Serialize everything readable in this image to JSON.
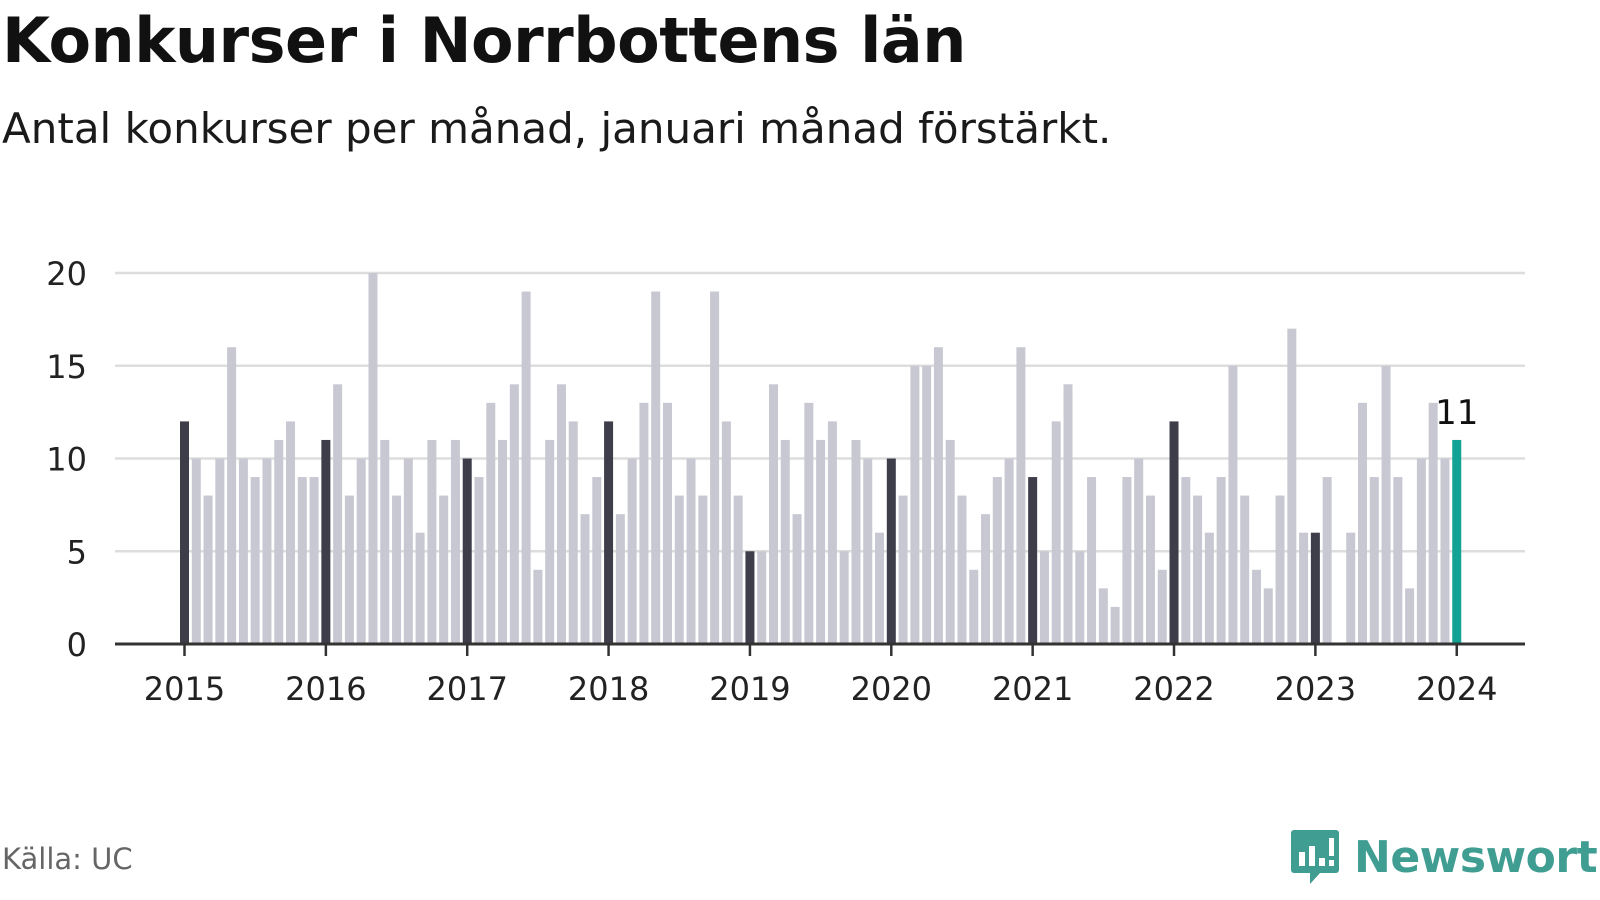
{
  "title": "Konkurser i Norrbottens län",
  "subtitle": "Antal konkurser per månad, januari månad förstärkt.",
  "source": "Källa: UC",
  "brand": "Newsworthy",
  "colors": {
    "january": "#3e3e4a",
    "other": "#c8c8d2",
    "latest": "#12a394",
    "grid": "#dddddd",
    "axis": "#333333",
    "brand": "#3f9d91"
  },
  "chart_data": {
    "type": "bar",
    "title": "Konkurser i Norrbottens län",
    "subtitle": "Antal konkurser per månad, januari månad förstärkt.",
    "xlabel": "",
    "ylabel": "",
    "ylim": [
      0,
      20
    ],
    "yticks": [
      0,
      5,
      10,
      15,
      20
    ],
    "grid": true,
    "start_year": 2015,
    "xticks": [
      "2015",
      "2016",
      "2017",
      "2018",
      "2019",
      "2020",
      "2021",
      "2022",
      "2023",
      "2024"
    ],
    "values": [
      12,
      10,
      8,
      10,
      16,
      10,
      9,
      10,
      11,
      12,
      9,
      9,
      11,
      14,
      8,
      10,
      20,
      11,
      8,
      10,
      6,
      11,
      8,
      11,
      10,
      9,
      13,
      11,
      14,
      19,
      4,
      11,
      14,
      12,
      7,
      9,
      12,
      7,
      10,
      13,
      19,
      13,
      8,
      10,
      8,
      19,
      12,
      8,
      5,
      5,
      14,
      11,
      7,
      13,
      11,
      12,
      5,
      11,
      10,
      6,
      10,
      8,
      15,
      15,
      16,
      11,
      8,
      4,
      7,
      9,
      10,
      16,
      9,
      5,
      12,
      14,
      5,
      9,
      3,
      2,
      9,
      10,
      8,
      4,
      12,
      9,
      8,
      6,
      9,
      15,
      8,
      4,
      3,
      8,
      17,
      6,
      6,
      9,
      0,
      6,
      13,
      9,
      15,
      9,
      3,
      10,
      13,
      10,
      11
    ],
    "highlight": {
      "index": 108,
      "label": "11"
    }
  }
}
